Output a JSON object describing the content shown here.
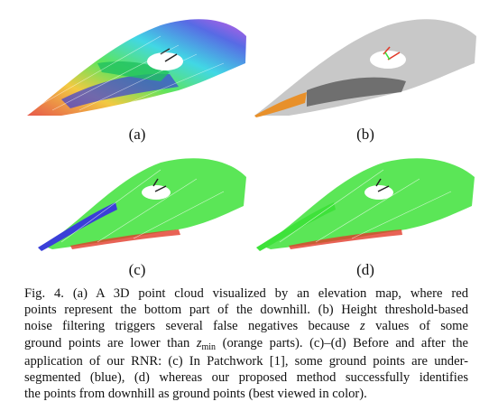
{
  "panels": [
    {
      "label": "(a)"
    },
    {
      "label": "(b)"
    },
    {
      "label": "(c)"
    },
    {
      "label": "(d)"
    }
  ],
  "caption": {
    "line1": "Fig. 4.  (a) A 3D point cloud visualized by an elevation map, where red",
    "line2": "points represent the bottom part of the downhill.  (b) Height threshold-based",
    "line3": "noise filtering triggers several false negatives because",
    "line3_var": "z",
    "line3_end": "values of some",
    "line4_start": "ground points are lower than",
    "line4_var": "z",
    "line4_sub": "min",
    "line4_end": "(orange parts).  (c)–(d) Before and after the",
    "line5": "application of our RNR: (c) In Patchwork [1], some ground points are under-",
    "line6": "segmented (blue), (d) whereas our proposed method successfully identifies",
    "line7": "the points from downhill as ground points (best viewed in color)."
  },
  "colors": {
    "ground": "#3ee23a",
    "undersegmented": "#3a3fd8",
    "bottom": "#e23b2a",
    "orange": "#e8902a",
    "gray": "#8a8a8a"
  }
}
